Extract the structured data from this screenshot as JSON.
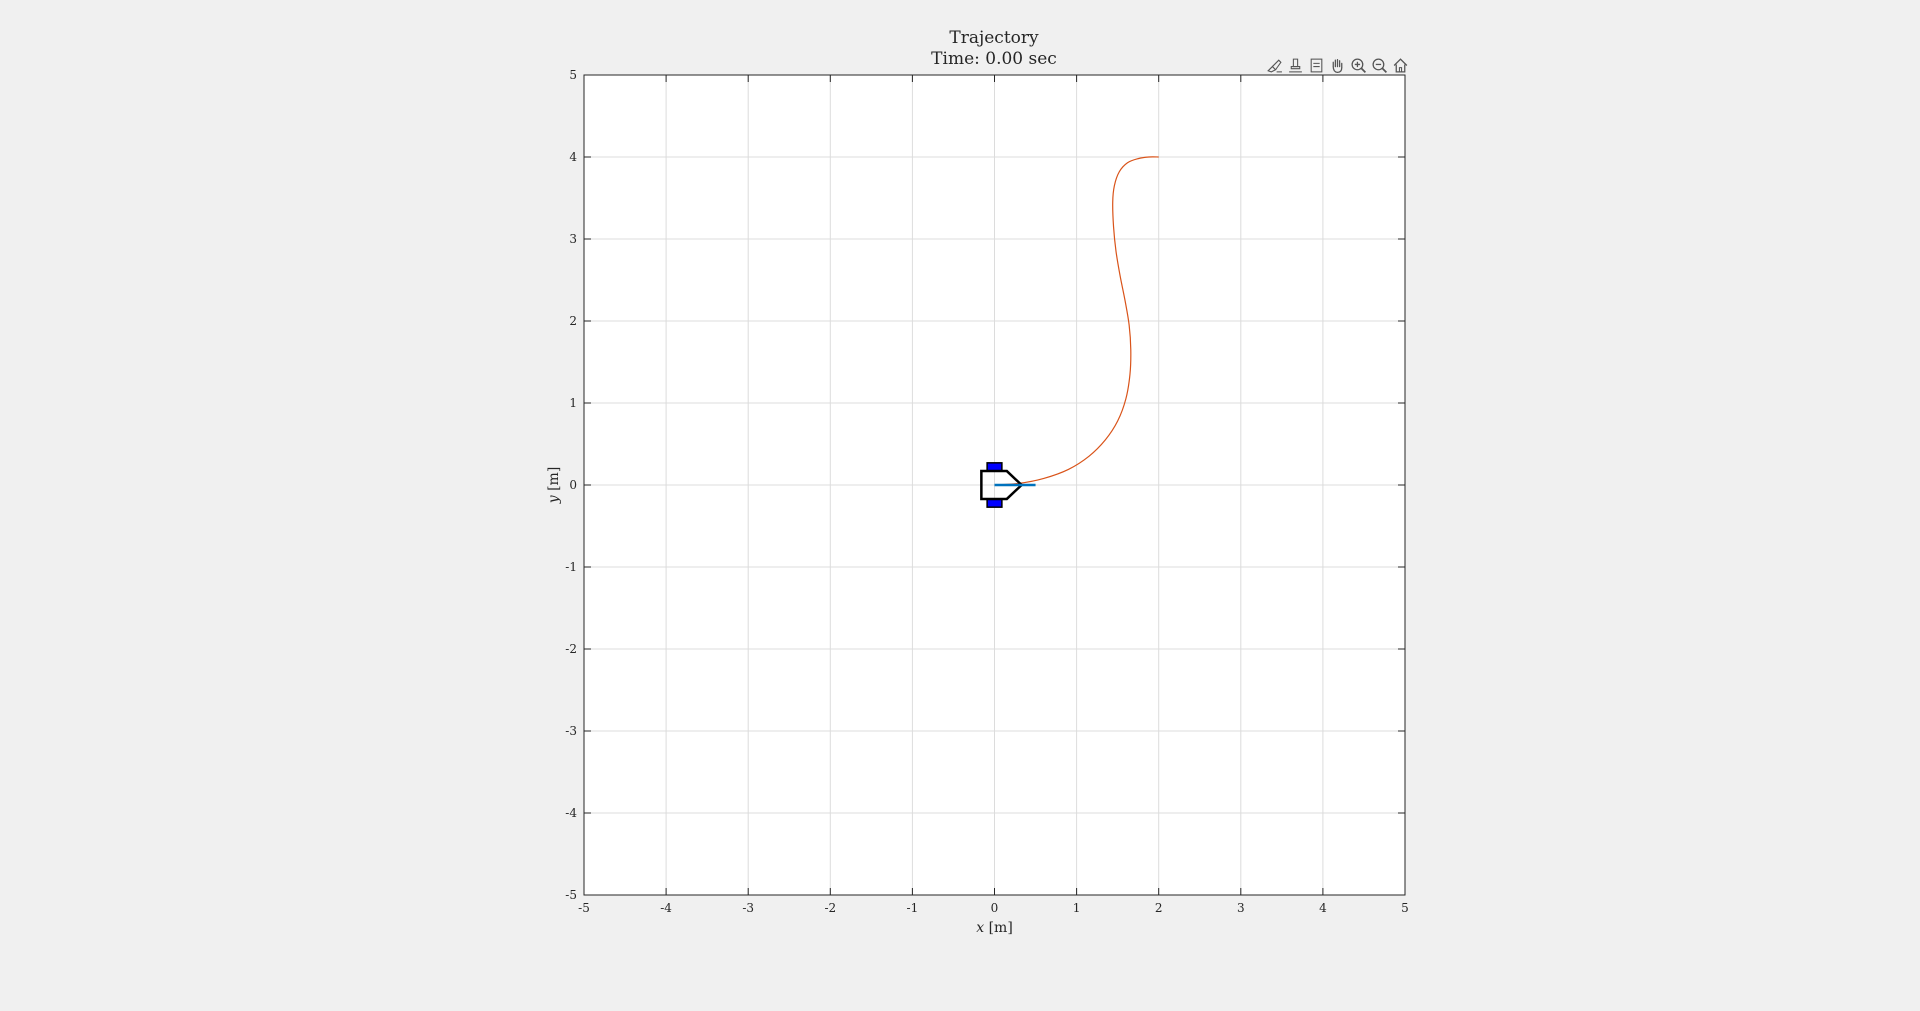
{
  "toolbar": {
    "icons": [
      "brush-icon",
      "data-tips-icon",
      "insert-legend-icon",
      "pan-icon",
      "zoom-in-icon",
      "zoom-out-icon",
      "home-icon"
    ]
  },
  "chart_data": {
    "type": "line",
    "title": "Trajectory",
    "subtitle": "Time: 0.00 sec",
    "xlabel_var": "x",
    "xlabel_unit": "[m]",
    "ylabel_var": "y",
    "ylabel_unit": "[m]",
    "xlim": [
      -5,
      5
    ],
    "ylim": [
      -5,
      5
    ],
    "xticks": [
      -5,
      -4,
      -3,
      -2,
      -1,
      0,
      1,
      2,
      3,
      4,
      5
    ],
    "yticks": [
      -5,
      -4,
      -3,
      -2,
      -1,
      0,
      1,
      2,
      3,
      4,
      5
    ],
    "grid": true,
    "series": [
      {
        "color": "#d95319",
        "x": [
          0.0,
          0.3,
          0.6,
          0.9,
          1.15,
          1.35,
          1.5,
          1.6,
          1.65,
          1.66,
          1.64,
          1.59,
          1.53,
          1.48,
          1.45,
          1.44,
          1.46,
          1.52,
          1.62,
          1.75,
          1.88,
          2.0
        ],
        "y": [
          0.0,
          0.02,
          0.08,
          0.19,
          0.35,
          0.55,
          0.78,
          1.05,
          1.35,
          1.65,
          1.95,
          2.25,
          2.55,
          2.85,
          3.15,
          3.45,
          3.65,
          3.82,
          3.93,
          3.98,
          4.0,
          4.0
        ]
      }
    ],
    "robot": {
      "pose_x": 0.0,
      "pose_y": 0.0,
      "heading_deg": 0,
      "body_color": "#000000",
      "wheel_color": "#0000ff",
      "heading_color": "#0072bd"
    }
  }
}
